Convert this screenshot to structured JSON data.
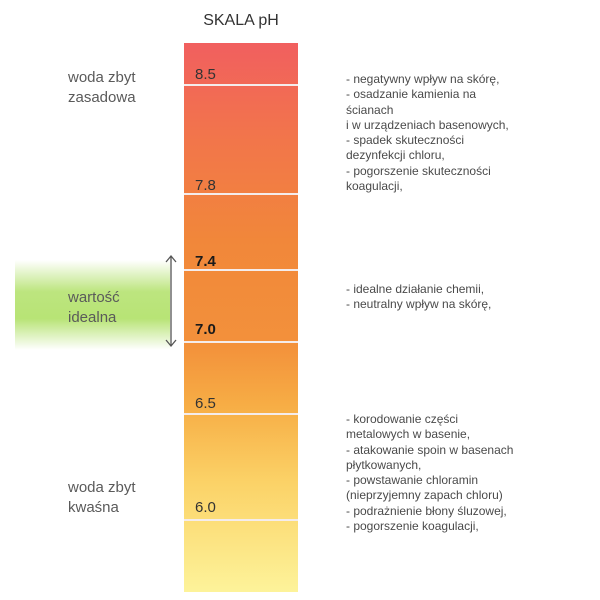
{
  "title": "SKALA pH",
  "ph_values": [
    "8.5",
    "7.8",
    "7.4",
    "7.0",
    "6.5",
    "6.0"
  ],
  "zones": {
    "alkaline": "woda zbyt\nzasadowa",
    "ideal": "wartość\nidealna",
    "acidic": "woda zbyt\nkwaśna"
  },
  "effects": {
    "alkaline": [
      "- negatywny wpływ na skórę,",
      "- osadzanie kamienia na",
      "ścianach",
      "i w urządzeniach basenowych,",
      "- spadek skuteczności",
      "dezynfekcji chloru,",
      "- pogorszenie skuteczności",
      "koagulacji,"
    ],
    "ideal": [
      "- idealne działanie chemii,",
      "- neutralny wpływ na skórę,"
    ],
    "acidic": [
      "- korodowanie części",
      "metalowych w basenie,",
      "- atakowanie spoin w basenach",
      "płytkowanych,",
      "- powstawanie chloramin",
      "(nieprzyjemny zapach chloru)",
      "- podrażnienie błony śluzowej,",
      "- pogorszenie koagulacji,"
    ]
  },
  "colors": {
    "scale_top": "#f15f5f",
    "scale_middle": "#f3913b",
    "scale_bottom": "#fdf39a",
    "ideal_band": "#b4e26e"
  }
}
